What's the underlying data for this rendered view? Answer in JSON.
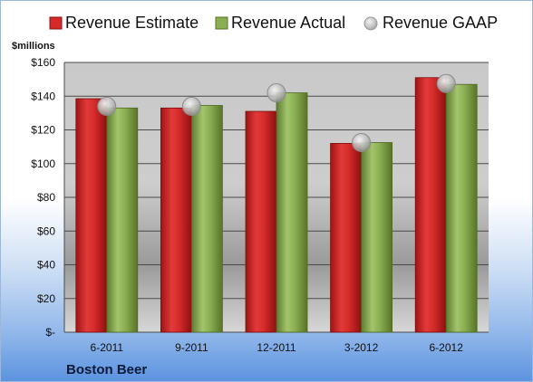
{
  "chart_data": {
    "type": "bar",
    "categories": [
      "6-2011",
      "9-2011",
      "12-2011",
      "3-2012",
      "6-2012"
    ],
    "series": [
      {
        "name": "Revenue Estimate",
        "type": "bar",
        "color": "#d42a2a",
        "values": [
          138.5,
          133,
          131,
          112,
          151
        ]
      },
      {
        "name": "Revenue Actual",
        "type": "bar",
        "color": "#8aae52",
        "values": [
          133,
          134.5,
          142,
          112.5,
          147
        ]
      },
      {
        "name": "Revenue GAAP",
        "type": "marker",
        "color": "#c8c8c8",
        "values": [
          134,
          134,
          142,
          112.5,
          147.5
        ]
      }
    ],
    "ylim": [
      0,
      160
    ],
    "yticks": [
      0,
      20,
      40,
      60,
      80,
      100,
      120,
      140,
      160
    ],
    "ytick_labels": [
      "$-",
      "$20",
      "$40",
      "$60",
      "$80",
      "$100",
      "$120",
      "$140",
      "$160"
    ],
    "ylabel": "$millions",
    "legend": "top",
    "grid": true
  },
  "footer": {
    "company": "Boston Beer"
  }
}
